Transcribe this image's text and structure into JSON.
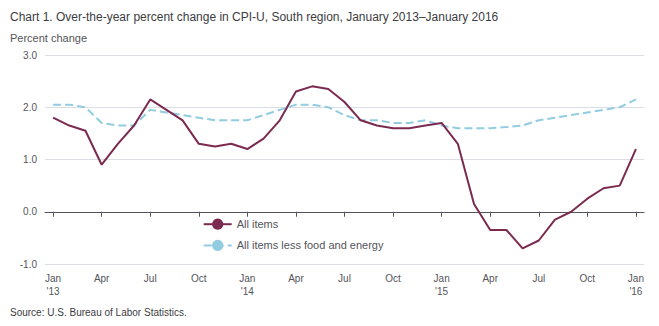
{
  "chart_data": {
    "type": "line",
    "title": "Chart 1. Over-the-year percent change in CPI-U, South region, January 2013–January 2016",
    "ylabel": "Percent change",
    "source": "Source: U.S. Bureau of Labor Statistics.",
    "categories": [
      "Jan\n'13",
      null,
      null,
      "Apr",
      null,
      null,
      "Jul",
      null,
      null,
      "Oct",
      null,
      null,
      "Jan\n'14",
      null,
      null,
      "Apr",
      null,
      null,
      "Jul",
      null,
      null,
      "Oct",
      null,
      null,
      "Jan\n'15",
      null,
      null,
      "Apr",
      null,
      null,
      "Jul",
      null,
      null,
      "Oct",
      null,
      null,
      "Jan\n'16"
    ],
    "series": [
      {
        "name": "All items",
        "color": "#7b2b50",
        "line_style": "solid",
        "values": [
          1.8,
          1.65,
          1.55,
          0.9,
          1.3,
          1.65,
          2.15,
          1.95,
          1.75,
          1.3,
          1.25,
          1.3,
          1.2,
          1.4,
          1.75,
          2.3,
          2.4,
          2.35,
          2.1,
          1.75,
          1.65,
          1.6,
          1.6,
          1.65,
          1.7,
          1.3,
          0.15,
          -0.35,
          -0.35,
          -0.7,
          -0.55,
          -0.15,
          0.0,
          0.25,
          0.45,
          0.5,
          1.2
        ]
      },
      {
        "name": "All items less food and energy",
        "color": "#92cce0",
        "line_style": "dashed",
        "values": [
          2.05,
          2.05,
          2.0,
          1.7,
          1.65,
          1.65,
          1.95,
          1.9,
          1.85,
          1.8,
          1.75,
          1.75,
          1.75,
          1.85,
          1.95,
          2.05,
          2.05,
          2.0,
          1.85,
          1.75,
          1.75,
          1.7,
          1.7,
          1.75,
          1.65,
          1.6,
          1.6,
          1.6,
          1.62,
          1.65,
          1.75,
          1.8,
          1.85,
          1.9,
          1.95,
          2.0,
          2.15
        ]
      }
    ],
    "ylim": [
      -1.0,
      3.0
    ],
    "yticks": [
      {
        "value": -1.0,
        "label": "-1.0"
      },
      {
        "value": 0.0,
        "label": "0.0"
      },
      {
        "value": 1.0,
        "label": "1.0"
      },
      {
        "value": 2.0,
        "label": "2.0"
      },
      {
        "value": 3.0,
        "label": "3.0"
      }
    ],
    "grid": true,
    "legend": "lower left"
  }
}
